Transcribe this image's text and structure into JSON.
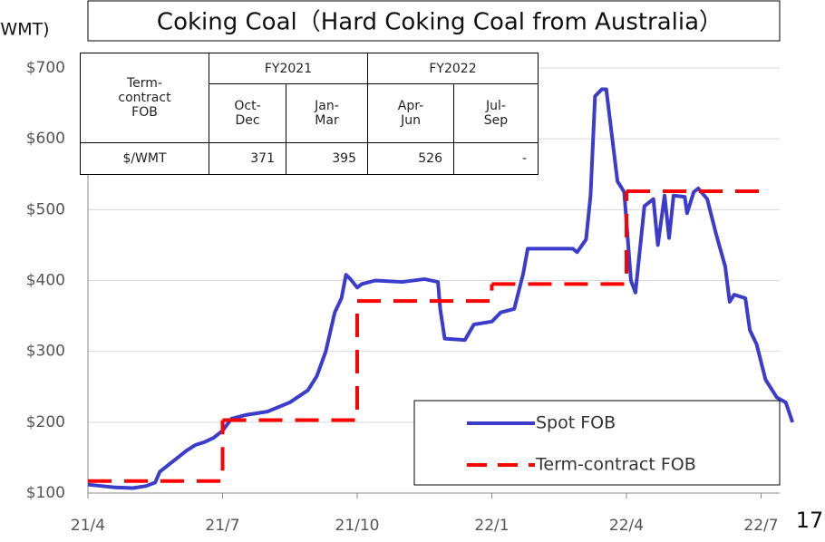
{
  "chart_data": {
    "type": "line",
    "title": "Coking Coal（Hard Coking Coal from Australia）",
    "ylabel": "/WMT)",
    "page_number": "17",
    "xlim": [
      0,
      16
    ],
    "xticks": [
      {
        "value": 0,
        "label": "21/4"
      },
      {
        "value": 3,
        "label": "21/7"
      },
      {
        "value": 6,
        "label": "21/10"
      },
      {
        "value": 9,
        "label": "22/1"
      },
      {
        "value": 12,
        "label": "22/4"
      },
      {
        "value": 15,
        "label": "22/7"
      }
    ],
    "ylim": [
      100,
      700
    ],
    "yticks": [
      {
        "value": 100,
        "label": "$100"
      },
      {
        "value": 200,
        "label": "$200"
      },
      {
        "value": 300,
        "label": "$300"
      },
      {
        "value": 400,
        "label": "$400"
      },
      {
        "value": 500,
        "label": "$500"
      },
      {
        "value": 600,
        "label": "$600"
      },
      {
        "value": 700,
        "label": "$700"
      }
    ],
    "grid": true,
    "legend": "lower right",
    "series": [
      {
        "name": "Spot FOB",
        "color": "#3b3bcc",
        "style": "solid",
        "x": [
          0,
          0.3,
          0.6,
          1.0,
          1.1,
          1.3,
          1.5,
          1.6,
          1.8,
          2.0,
          2.2,
          2.4,
          2.6,
          2.8,
          3.0,
          3.2,
          3.5,
          4.0,
          4.5,
          4.9,
          5.1,
          5.3,
          5.5,
          5.65,
          5.75,
          5.85,
          6.0,
          6.1,
          6.4,
          7.0,
          7.5,
          7.8,
          7.85,
          7.95,
          8.4,
          8.6,
          9.0,
          9.2,
          9.5,
          9.7,
          9.8,
          10.8,
          10.9,
          11.1,
          11.2,
          11.3,
          11.45,
          11.55,
          11.8,
          11.95,
          12.1,
          12.2,
          12.4,
          12.6,
          12.7,
          12.85,
          12.95,
          13.05,
          13.3,
          13.35,
          13.5,
          13.6,
          13.8,
          14.0,
          14.2,
          14.3,
          14.4,
          14.65,
          14.75,
          14.9,
          15.1,
          15.35,
          15.55,
          15.7
        ],
        "values": [
          112,
          110,
          108,
          107,
          108,
          110,
          115,
          130,
          140,
          150,
          160,
          168,
          172,
          178,
          188,
          205,
          210,
          215,
          228,
          245,
          265,
          300,
          355,
          375,
          408,
          402,
          390,
          395,
          400,
          398,
          402,
          398,
          360,
          318,
          316,
          338,
          342,
          355,
          360,
          410,
          445,
          445,
          440,
          458,
          520,
          660,
          670,
          670,
          540,
          525,
          400,
          383,
          505,
          515,
          450,
          520,
          460,
          520,
          518,
          495,
          525,
          530,
          515,
          465,
          420,
          370,
          380,
          375,
          330,
          310,
          260,
          235,
          228,
          200
        ]
      },
      {
        "name": "Term-contract FOB",
        "color": "#ff0000",
        "style": "dashed",
        "step": true,
        "x": [
          0,
          3,
          6,
          9,
          12,
          15
        ],
        "values": [
          117,
          203,
          371,
          395,
          526,
          526
        ]
      }
    ]
  },
  "table": {
    "corner": "Term-contract FOB",
    "groups": [
      "FY2021",
      "FY2022"
    ],
    "periods": [
      "Oct-Dec",
      "Jan-Mar",
      "Apr-Jun",
      "Jul-Sep"
    ],
    "row_label": "$/WMT",
    "row": [
      "371",
      "395",
      "526",
      "-"
    ]
  }
}
